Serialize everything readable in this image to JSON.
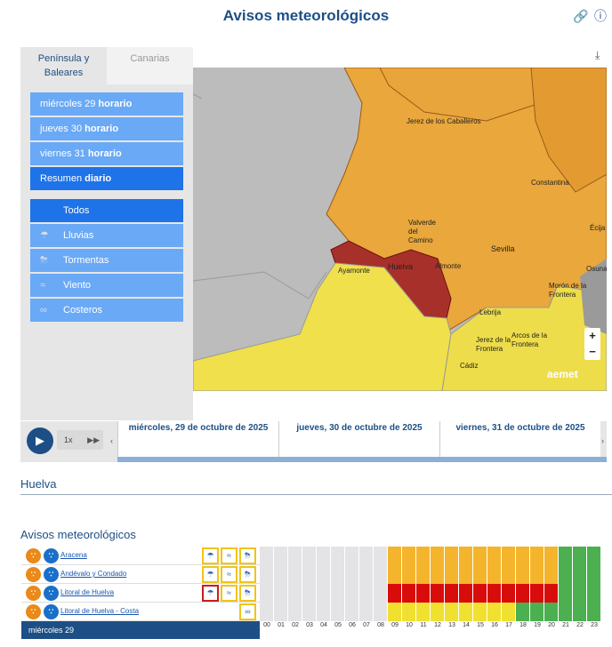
{
  "title": "Avisos meteorológicos",
  "top_icons": {
    "link": "link-icon",
    "info": "info-icon"
  },
  "tabs": [
    {
      "label": "Península y Baleares",
      "active": true
    },
    {
      "label": "Canarias",
      "active": false
    }
  ],
  "periods": [
    {
      "day": "miércoles 29",
      "kind": "horario"
    },
    {
      "day": "jueves 30",
      "kind": "horario"
    },
    {
      "day": "viernes 31",
      "kind": "horario"
    },
    {
      "day": "Resumen",
      "kind": "diario",
      "selected": true
    }
  ],
  "filters": [
    {
      "label": "Todos",
      "icon": ""
    },
    {
      "label": "Lluvias",
      "icon": "rain-icon"
    },
    {
      "label": "Tormentas",
      "icon": "storm-icon"
    },
    {
      "label": "Viento",
      "icon": "wind-icon"
    },
    {
      "label": "Costeros",
      "icon": "coastal-icon"
    }
  ],
  "map": {
    "towns": [
      "Jerez de los Caballeros",
      "Constantina",
      "Écija",
      "Valverde del Camino",
      "Sevilla",
      "Osuna",
      "Ayamonte",
      "Huelva",
      "Almonte",
      "Morón de la Frontera",
      "Lebrija",
      "Jerez de la Frontera",
      "Arcos de la Frontera",
      "Cádiz"
    ],
    "logo": "aemet",
    "zoom_in": "+",
    "zoom_out": "−"
  },
  "timeline": {
    "speed": "1x",
    "days": [
      "miércoles, 29 de octubre de 2025",
      "jueves, 30 de octubre de 2025",
      "viernes, 31 de octubre de 2025"
    ],
    "prev": "‹",
    "next": "›"
  },
  "location": "Huelva",
  "warnings_title": "Avisos meteorológicos",
  "zones": [
    {
      "name": "Aracena",
      "icons": [
        "rain",
        "wind",
        "storm"
      ],
      "red_icon": -1,
      "levels": [
        "g",
        "g",
        "g",
        "g",
        "g",
        "g",
        "g",
        "g",
        "g",
        "o",
        "o",
        "o",
        "o",
        "o",
        "o",
        "o",
        "o",
        "o",
        "o",
        "o",
        "o",
        "gr",
        "gr",
        "gr"
      ]
    },
    {
      "name": "Andévalo y Condado",
      "icons": [
        "rain",
        "wind",
        "storm"
      ],
      "red_icon": -1,
      "levels": [
        "g",
        "g",
        "g",
        "g",
        "g",
        "g",
        "g",
        "g",
        "g",
        "o",
        "o",
        "o",
        "o",
        "o",
        "o",
        "o",
        "o",
        "o",
        "o",
        "o",
        "o",
        "gr",
        "gr",
        "gr"
      ]
    },
    {
      "name": "Litoral de Huelva",
      "icons": [
        "rain",
        "wind",
        "storm"
      ],
      "red_icon": 0,
      "levels": [
        "g",
        "g",
        "g",
        "g",
        "g",
        "g",
        "g",
        "g",
        "g",
        "r",
        "r",
        "r",
        "r",
        "r",
        "r",
        "r",
        "r",
        "r",
        "r",
        "r",
        "r",
        "gr",
        "gr",
        "gr"
      ]
    },
    {
      "name": "Litoral de Huelva - Costa",
      "icons": [
        "coast"
      ],
      "red_icon": -1,
      "levels": [
        "g",
        "g",
        "g",
        "g",
        "g",
        "g",
        "g",
        "g",
        "g",
        "y",
        "y",
        "y",
        "y",
        "y",
        "y",
        "y",
        "y",
        "y",
        "gr",
        "gr",
        "gr",
        "gr",
        "gr",
        "gr"
      ]
    }
  ],
  "footer_day": "miércoles 29",
  "hours": [
    "00",
    "01",
    "02",
    "03",
    "04",
    "05",
    "06",
    "07",
    "08",
    "09",
    "10",
    "11",
    "12",
    "13",
    "14",
    "15",
    "16",
    "17",
    "18",
    "19",
    "20",
    "21",
    "22",
    "23"
  ],
  "colors": {
    "g": "#e4e4e6",
    "o": "#f4b42c",
    "r": "#d90c0c",
    "y": "#f0e030",
    "gr": "#4caf50"
  }
}
